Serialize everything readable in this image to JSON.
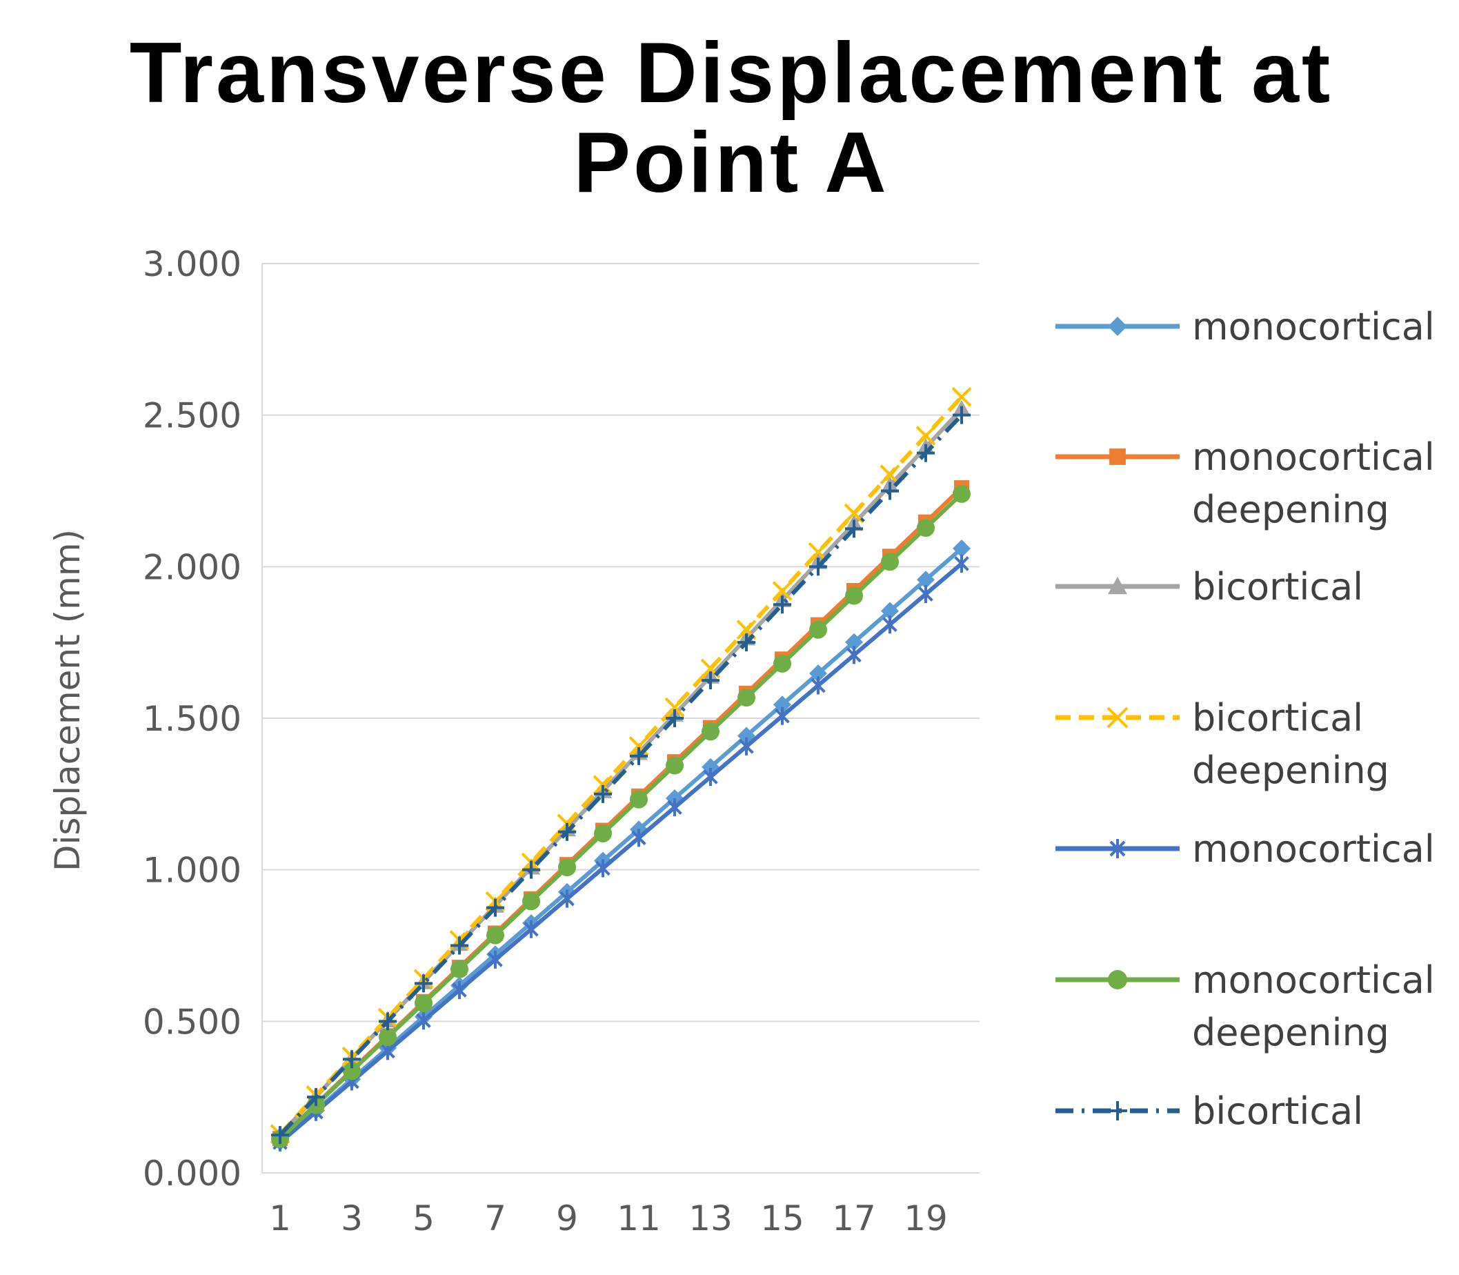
{
  "chart_data": {
    "type": "line",
    "title_lines": [
      "Transverse Displacement at",
      "Point A"
    ],
    "xlabel": "",
    "ylabel": "Displacement (mm)",
    "x": [
      1,
      2,
      3,
      4,
      5,
      6,
      7,
      8,
      9,
      10,
      11,
      12,
      13,
      14,
      15,
      16,
      17,
      18,
      19,
      20
    ],
    "x_tick_labels": [
      "1",
      "3",
      "5",
      "7",
      "9",
      "11",
      "13",
      "15",
      "17",
      "19"
    ],
    "x_tick_values": [
      1,
      3,
      5,
      7,
      9,
      11,
      13,
      15,
      17,
      19
    ],
    "ylim": [
      0,
      3
    ],
    "y_ticks": [
      0,
      0.5,
      1,
      1.5,
      2,
      2.5,
      3
    ],
    "y_tick_labels": [
      "0.000",
      "0.500",
      "1.000",
      "1.500",
      "2.000",
      "2.500",
      "3.000"
    ],
    "grid": "horizontal",
    "legend_position": "right",
    "series": [
      {
        "legend_lines": [
          "monocortical"
        ],
        "color": "#5B9BD5",
        "marker": "diamond",
        "dash": "solid",
        "values": [
          0.103,
          0.206,
          0.309,
          0.412,
          0.515,
          0.618,
          0.721,
          0.824,
          0.927,
          1.03,
          1.133,
          1.236,
          1.339,
          1.442,
          1.545,
          1.648,
          1.751,
          1.854,
          1.957,
          2.06
        ]
      },
      {
        "legend_lines": [
          "monocortical",
          "deepening"
        ],
        "color": "#ED7D31",
        "marker": "square",
        "dash": "solid",
        "values": [
          0.113,
          0.226,
          0.339,
          0.452,
          0.565,
          0.678,
          0.791,
          0.904,
          1.017,
          1.13,
          1.243,
          1.356,
          1.469,
          1.582,
          1.695,
          1.808,
          1.921,
          2.034,
          2.147,
          2.26
        ]
      },
      {
        "legend_lines": [
          "bicortical"
        ],
        "color": "#A5A5A5",
        "marker": "triangle",
        "dash": "solid",
        "values": [
          0.126,
          0.252,
          0.378,
          0.504,
          0.63,
          0.756,
          0.882,
          1.008,
          1.134,
          1.26,
          1.386,
          1.512,
          1.638,
          1.764,
          1.89,
          2.016,
          2.142,
          2.268,
          2.394,
          2.52
        ]
      },
      {
        "legend_lines": [
          "bicortical",
          "deepening"
        ],
        "color": "#FFC000",
        "marker": "x",
        "dash": "dashed",
        "values": [
          0.128,
          0.256,
          0.384,
          0.512,
          0.64,
          0.768,
          0.896,
          1.024,
          1.152,
          1.28,
          1.408,
          1.536,
          1.664,
          1.792,
          1.92,
          2.048,
          2.176,
          2.304,
          2.432,
          2.56
        ]
      },
      {
        "legend_lines": [
          "monocortical"
        ],
        "color": "#4472C4",
        "marker": "asterisk",
        "dash": "solid",
        "values": [
          0.1005,
          0.201,
          0.3015,
          0.402,
          0.5025,
          0.603,
          0.7035,
          0.804,
          0.9045,
          1.005,
          1.1055,
          1.206,
          1.3065,
          1.407,
          1.5075,
          1.608,
          1.7085,
          1.809,
          1.9095,
          2.01
        ]
      },
      {
        "legend_lines": [
          "monocortical",
          "deepening"
        ],
        "color": "#70AD47",
        "marker": "circle",
        "dash": "solid",
        "values": [
          0.112,
          0.224,
          0.336,
          0.448,
          0.56,
          0.672,
          0.784,
          0.896,
          1.008,
          1.12,
          1.232,
          1.344,
          1.456,
          1.568,
          1.68,
          1.792,
          1.904,
          2.016,
          2.128,
          2.24
        ]
      },
      {
        "legend_lines": [
          "bicortical"
        ],
        "color": "#255E91",
        "marker": "plus",
        "dash": "dashdot",
        "values": [
          0.125,
          0.25,
          0.375,
          0.5,
          0.625,
          0.75,
          0.875,
          1.0,
          1.125,
          1.25,
          1.375,
          1.5,
          1.625,
          1.75,
          1.875,
          2.0,
          2.125,
          2.25,
          2.375,
          2.5
        ]
      }
    ]
  }
}
